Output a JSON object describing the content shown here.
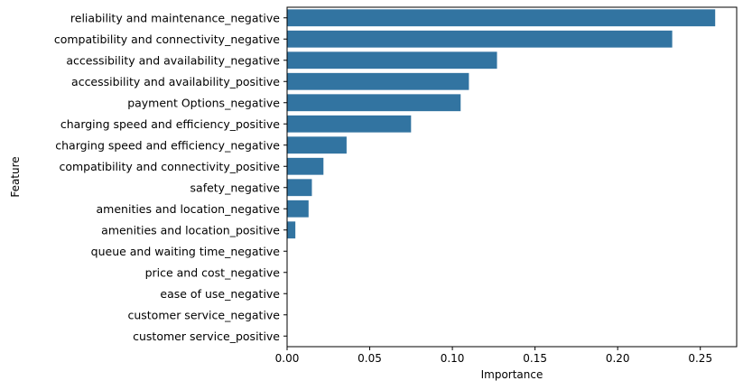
{
  "chart_data": {
    "type": "bar",
    "orientation": "horizontal",
    "xlabel": "Importance",
    "ylabel": "Feature",
    "xlim": [
      0,
      0.272
    ],
    "xticks": [
      "0.00",
      "0.05",
      "0.10",
      "0.15",
      "0.20",
      "0.25"
    ],
    "grid": false,
    "bar_color": "#3274a1",
    "categories": [
      "reliability and maintenance_negative",
      "compatibility and connectivity_negative",
      "accessibility and availability_negative",
      "accessibility and availability_positive",
      "payment Options_negative",
      "charging speed and efficiency_positive",
      "charging speed and efficiency_negative",
      "compatibility and connectivity_positive",
      "safety_negative",
      "amenities and location_negative",
      "amenities and location_positive",
      "queue and waiting time_negative",
      "price and cost_negative",
      "ease of use_negative",
      "customer service_negative",
      "customer service_positive"
    ],
    "values": [
      0.259,
      0.233,
      0.127,
      0.11,
      0.105,
      0.075,
      0.036,
      0.022,
      0.015,
      0.013,
      0.005,
      0.0,
      0.0,
      0.0,
      0.0,
      0.0
    ]
  }
}
